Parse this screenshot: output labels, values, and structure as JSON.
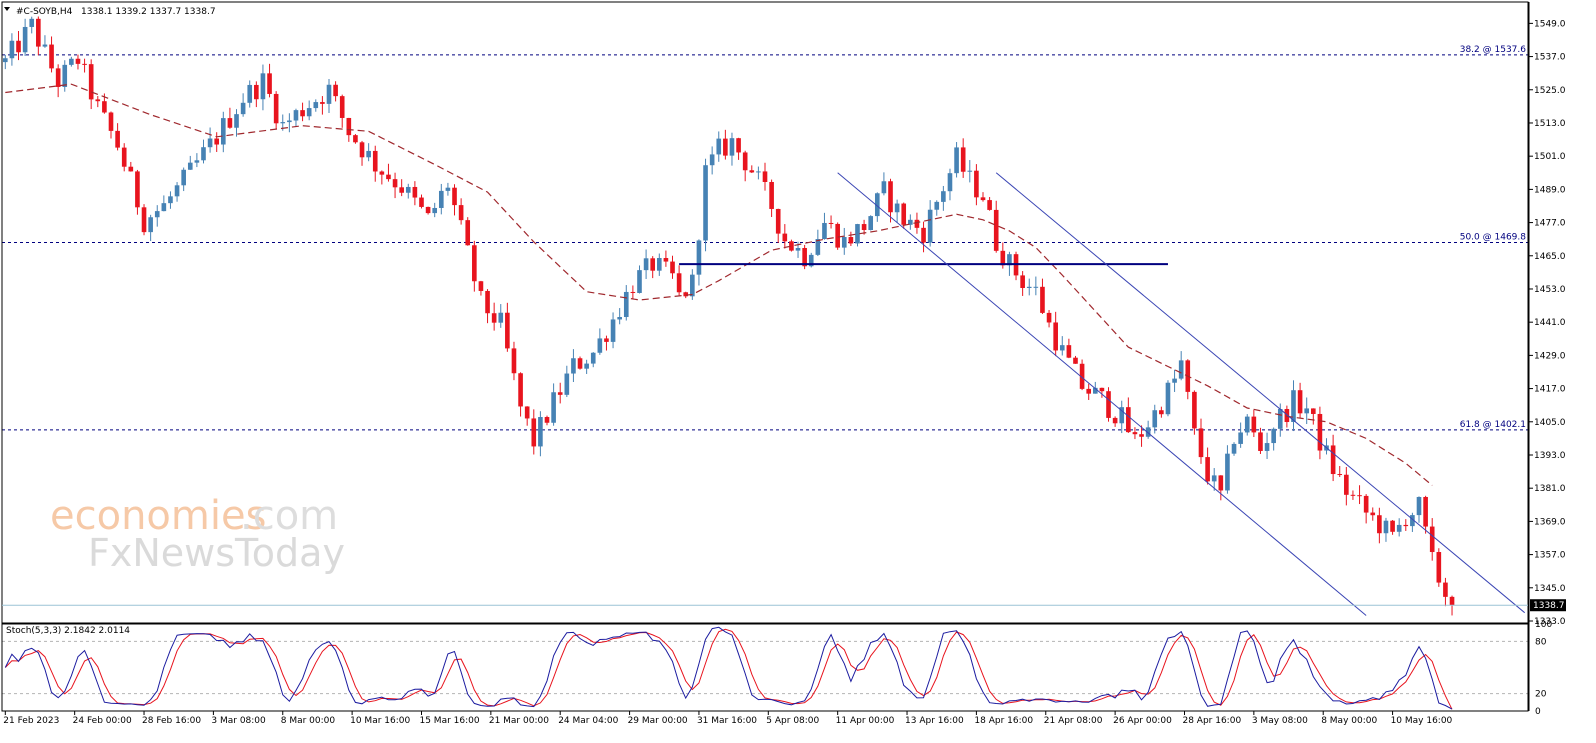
{
  "header": {
    "symbol": "#C-SOYB,H4",
    "ohlc": "1338.1 1339.2 1337.7 1338.7"
  },
  "watermark": {
    "brand_main": "economies",
    "brand_suffix": ".com",
    "brand_line2": "FxNewsToday"
  },
  "stoch_label": "Stoch(5,3,3) 2.1842 2.0114",
  "price_axis": {
    "ticks": [
      "1549.0",
      "1537.0",
      "1525.0",
      "1513.0",
      "1501.0",
      "1489.0",
      "1477.0",
      "1465.0",
      "1453.0",
      "1441.0",
      "1429.0",
      "1417.0",
      "1405.0",
      "1393.0",
      "1381.0",
      "1369.0",
      "1357.0",
      "1345.0",
      "1333.0"
    ],
    "current": "1338.7"
  },
  "stoch_axis": {
    "ticks": [
      "100",
      "80",
      "20",
      "0"
    ]
  },
  "time_axis": [
    "21 Feb 2023",
    "24 Feb 00:00",
    "28 Feb 16:00",
    "3 Mar 08:00",
    "8 Mar 00:00",
    "10 Mar 16:00",
    "15 Mar 16:00",
    "21 Mar 00:00",
    "24 Mar 04:00",
    "29 Mar 00:00",
    "31 Mar 16:00",
    "5 Apr 08:00",
    "11 Apr 00:00",
    "13 Apr 16:00",
    "18 Apr 16:00",
    "21 Apr 08:00",
    "26 Apr 00:00",
    "28 Apr 16:00",
    "3 May 08:00",
    "8 May 00:00",
    "10 May 16:00"
  ],
  "fib_labels": [
    "38.2 @ 1537.6",
    "50.0 @ 1469.8",
    "61.8 @ 1402.1"
  ],
  "colors": {
    "bull": "#4682b4",
    "bear": "#e8141e",
    "ma": "#a0282d",
    "fib": "#00007f",
    "channel": "#3a45b4",
    "stoch_main": "#1c1ca0",
    "stoch_signal": "#e8141e"
  },
  "chart_data": {
    "type": "candlestick",
    "symbol": "#C-SOYB",
    "timeframe": "H4",
    "y_range": [
      1333,
      1556
    ],
    "close_path": [
      [
        0,
        1535
      ],
      [
        4,
        1548
      ],
      [
        8,
        1528
      ],
      [
        11,
        1536
      ],
      [
        14,
        1518
      ],
      [
        17,
        1505
      ],
      [
        21,
        1478
      ],
      [
        24,
        1483
      ],
      [
        28,
        1495
      ],
      [
        32,
        1508
      ],
      [
        36,
        1522
      ],
      [
        39,
        1528
      ],
      [
        42,
        1512
      ],
      [
        46,
        1520
      ],
      [
        49,
        1525
      ],
      [
        52,
        1510
      ],
      [
        56,
        1498
      ],
      [
        60,
        1490
      ],
      [
        64,
        1478
      ],
      [
        67,
        1491
      ],
      [
        69,
        1474
      ],
      [
        72,
        1448
      ],
      [
        75,
        1440
      ],
      [
        78,
        1410
      ],
      [
        80,
        1398
      ],
      [
        83,
        1412
      ],
      [
        86,
        1425
      ],
      [
        89,
        1430
      ],
      [
        92,
        1442
      ],
      [
        95,
        1455
      ],
      [
        98,
        1462
      ],
      [
        101,
        1457
      ],
      [
        102,
        1450
      ],
      [
        104,
        1455
      ],
      [
        106,
        1495
      ],
      [
        108,
        1503
      ],
      [
        110,
        1506
      ],
      [
        113,
        1496
      ],
      [
        116,
        1483
      ],
      [
        118,
        1471
      ],
      [
        121,
        1465
      ],
      [
        124,
        1477
      ],
      [
        127,
        1470
      ],
      [
        130,
        1476
      ],
      [
        133,
        1488
      ],
      [
        136,
        1478
      ],
      [
        139,
        1474
      ],
      [
        142,
        1490
      ],
      [
        144,
        1500
      ],
      [
        146,
        1492
      ],
      [
        148,
        1487
      ],
      [
        150,
        1470
      ],
      [
        152,
        1462
      ],
      [
        154,
        1456
      ],
      [
        156,
        1452
      ],
      [
        158,
        1440
      ],
      [
        160,
        1430
      ],
      [
        163,
        1418
      ],
      [
        166,
        1413
      ],
      [
        169,
        1406
      ],
      [
        171,
        1398
      ],
      [
        174,
        1408
      ],
      [
        177,
        1420
      ],
      [
        178,
        1426
      ],
      [
        180,
        1400
      ],
      [
        182,
        1386
      ],
      [
        184,
        1378
      ],
      [
        186,
        1400
      ],
      [
        188,
        1405
      ],
      [
        190,
        1395
      ],
      [
        192,
        1404
      ],
      [
        195,
        1412
      ],
      [
        197,
        1410
      ],
      [
        199,
        1398
      ],
      [
        201,
        1388
      ],
      [
        203,
        1380
      ],
      [
        206,
        1372
      ],
      [
        208,
        1368
      ],
      [
        210,
        1363
      ],
      [
        212,
        1371
      ],
      [
        214,
        1374
      ],
      [
        216,
        1354
      ],
      [
        218,
        1343
      ],
      [
        219,
        1338.7
      ]
    ],
    "ma_path": [
      [
        0,
        1524
      ],
      [
        10,
        1527
      ],
      [
        22,
        1516
      ],
      [
        32,
        1508
      ],
      [
        45,
        1512
      ],
      [
        55,
        1510
      ],
      [
        65,
        1498
      ],
      [
        73,
        1488
      ],
      [
        80,
        1470
      ],
      [
        88,
        1452
      ],
      [
        96,
        1449
      ],
      [
        104,
        1451
      ],
      [
        108,
        1456
      ],
      [
        116,
        1467
      ],
      [
        124,
        1471
      ],
      [
        132,
        1474
      ],
      [
        140,
        1478
      ],
      [
        144,
        1480
      ],
      [
        148,
        1478
      ],
      [
        152,
        1474
      ],
      [
        156,
        1468
      ],
      [
        160,
        1458
      ],
      [
        165,
        1445
      ],
      [
        170,
        1432
      ],
      [
        176,
        1425
      ],
      [
        182,
        1418
      ],
      [
        188,
        1410
      ],
      [
        194,
        1407
      ],
      [
        200,
        1405
      ],
      [
        206,
        1399
      ],
      [
        212,
        1390
      ],
      [
        216,
        1382
      ]
    ],
    "fib_levels": [
      {
        "label": "38.2 @ 1537.6",
        "value": 1537.6
      },
      {
        "label": "50.0 @ 1469.8",
        "value": 1469.8
      },
      {
        "label": "61.8 @ 1402.1",
        "value": 1402.1
      }
    ],
    "support_line": {
      "from_bar": 102,
      "to_bar": 176,
      "value": 1462
    },
    "channel": [
      {
        "from": [
          126,
          1495
        ],
        "to": [
          206,
          1335
        ]
      },
      {
        "from": [
          150,
          1495
        ],
        "to": [
          230,
          1336
        ]
      }
    ],
    "stochastic": {
      "params": "5,3,3",
      "main": 2.1842,
      "signal": 2.0114,
      "levels": [
        80,
        20
      ],
      "range": [
        0,
        100
      ]
    }
  }
}
